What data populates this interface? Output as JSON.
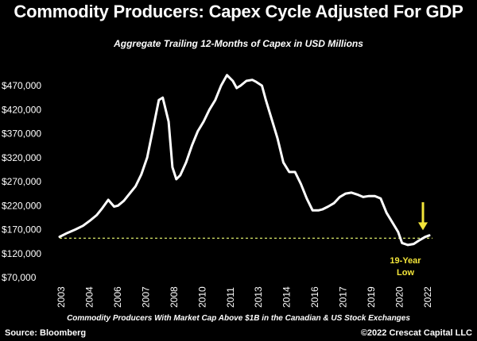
{
  "title": "Commodity Producers: Capex Cycle Adjusted For GDP",
  "subtitle": "Aggregate Trailing 12-Months of Capex in USD Millions",
  "footnote": "Commodity Producers With Market Cap Above $1B in the Canadian & US Stock Exchanges",
  "source": "Source: Bloomberg",
  "copyright": "©2022 Crescat Capital LLC",
  "colors": {
    "line": "#ffffff",
    "reference_line": "#d9e86a",
    "annotation": "#f3e53a",
    "background": "#000000"
  },
  "chart_data": {
    "type": "line",
    "title": "Commodity Producers: Capex Cycle Adjusted For GDP",
    "subtitle": "Aggregate Trailing 12-Months of Capex in USD Millions",
    "xlabel": "",
    "ylabel": "",
    "xlim": [
      2003,
      2022
    ],
    "ylim": [
      70000,
      470000
    ],
    "grid": false,
    "y_ticks": [
      {
        "value": 70000,
        "label": "$70,000"
      },
      {
        "value": 120000,
        "label": "$120,000"
      },
      {
        "value": 170000,
        "label": "$170,000"
      },
      {
        "value": 220000,
        "label": "$220,000"
      },
      {
        "value": 270000,
        "label": "$270,000"
      },
      {
        "value": 320000,
        "label": "$320,000"
      },
      {
        "value": 370000,
        "label": "$370,000"
      },
      {
        "value": 420000,
        "label": "$420,000"
      },
      {
        "value": 470000,
        "label": "$470,000"
      }
    ],
    "x_ticks": [
      "2003",
      "2004",
      "2006",
      "2007",
      "2008",
      "2010",
      "2011",
      "2013",
      "2014",
      "2016",
      "2017",
      "2019",
      "2020",
      "2022"
    ],
    "series": [
      {
        "x": [
          2003.0,
          2003.4,
          2003.8,
          2004.2,
          2004.6,
          2004.9,
          2005.2,
          2005.5,
          2005.8,
          2006.0,
          2006.3,
          2006.6,
          2006.9,
          2007.2,
          2007.5,
          2007.8,
          2008.1,
          2008.3,
          2008.6,
          2008.8,
          2009.0,
          2009.2,
          2009.5,
          2009.8,
          2010.1,
          2010.4,
          2010.7,
          2011.0,
          2011.3,
          2011.6,
          2011.9,
          2012.1,
          2012.3,
          2012.6,
          2012.9,
          2013.1,
          2013.4,
          2013.6,
          2013.9,
          2014.2,
          2014.5,
          2014.8,
          2015.1,
          2015.4,
          2015.7,
          2016.0,
          2016.3,
          2016.5,
          2016.8,
          2017.1,
          2017.4,
          2017.7,
          2018.0,
          2018.3,
          2018.6,
          2018.9,
          2019.2,
          2019.5,
          2019.8,
          2020.1,
          2020.4,
          2020.6,
          2020.9,
          2021.2,
          2021.5,
          2021.8,
          2022.0
        ],
        "y": [
          155000,
          163000,
          170000,
          178000,
          190000,
          200000,
          215000,
          232000,
          218000,
          220000,
          230000,
          245000,
          260000,
          285000,
          320000,
          380000,
          440000,
          445000,
          395000,
          300000,
          275000,
          283000,
          310000,
          345000,
          375000,
          395000,
          420000,
          440000,
          470000,
          492000,
          480000,
          465000,
          470000,
          480000,
          482000,
          478000,
          470000,
          440000,
          400000,
          360000,
          310000,
          290000,
          290000,
          265000,
          235000,
          210000,
          210000,
          212000,
          218000,
          225000,
          238000,
          245000,
          247000,
          243000,
          238000,
          240000,
          240000,
          235000,
          205000,
          185000,
          165000,
          142000,
          138000,
          140000,
          148000,
          155000,
          158000
        ]
      }
    ],
    "reference_line": {
      "y": 152000,
      "style": "dashed"
    },
    "annotations": [
      {
        "text_lines": [
          "19-Year",
          "Low"
        ],
        "points_to": {
          "x": 2021.5,
          "y": 152000
        },
        "arrow": "down"
      }
    ]
  }
}
